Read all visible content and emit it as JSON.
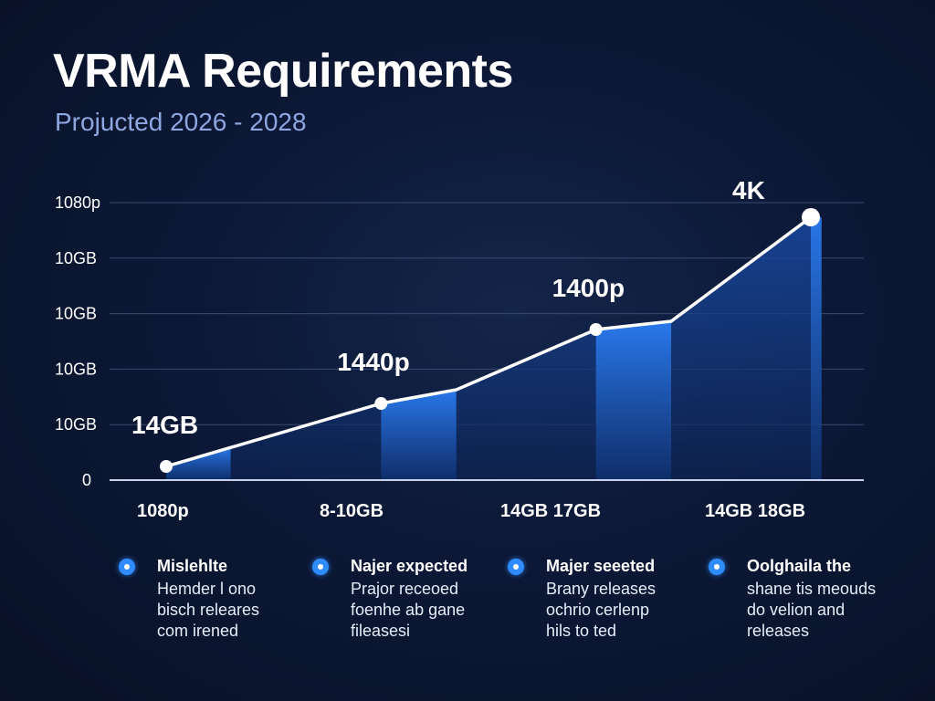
{
  "colors": {
    "accent": "#2f8cff",
    "bar_top": "#2a7cf2",
    "bar_bottom": "#10306e",
    "line": "#ffffff",
    "grid": "#3a4a6e",
    "subtitle": "#8ea7e0"
  },
  "chart_data": {
    "type": "area",
    "title": "VRMA Requirements",
    "subtitle": "Projucted 2026 - 2028",
    "y_tick_labels": [
      "0",
      "10GB",
      "10GB",
      "10GB",
      "10GB",
      "1080p"
    ],
    "x_tick_labels": [
      "1080p",
      "8-10GB",
      "14GB 17GB",
      "14GB 18GB"
    ],
    "grid": true,
    "series": [
      {
        "x": [
          0,
          1,
          1.35,
          2,
          2.35,
          3
        ],
        "values": [
          0.25,
          1.4,
          1.65,
          2.75,
          2.9,
          4.8
        ]
      }
    ],
    "markers": [
      {
        "x": 0,
        "y": 0.25,
        "label": "14GB"
      },
      {
        "x": 1,
        "y": 1.4,
        "label": "1440p"
      },
      {
        "x": 2,
        "y": 2.75,
        "label": "1400p"
      },
      {
        "x": 3,
        "y": 4.8,
        "label": "4K"
      }
    ],
    "ylim": [
      0,
      5
    ],
    "xlim": [
      0,
      3
    ]
  },
  "legend": [
    {
      "title": "Mislehlte",
      "desc": "Hemder l ono\nbisch releares\ncom irened"
    },
    {
      "title": "Najer expected",
      "desc": "Prajor receoed\nfoenhe ab gane\nfileasesi"
    },
    {
      "title": "Majer seeeted",
      "desc": "Brany releases\nochrio cerlenp\nhils to ted"
    },
    {
      "title": "Oolghaila the",
      "desc": "shane tis meouds\ndo velion and\nreleases"
    }
  ]
}
